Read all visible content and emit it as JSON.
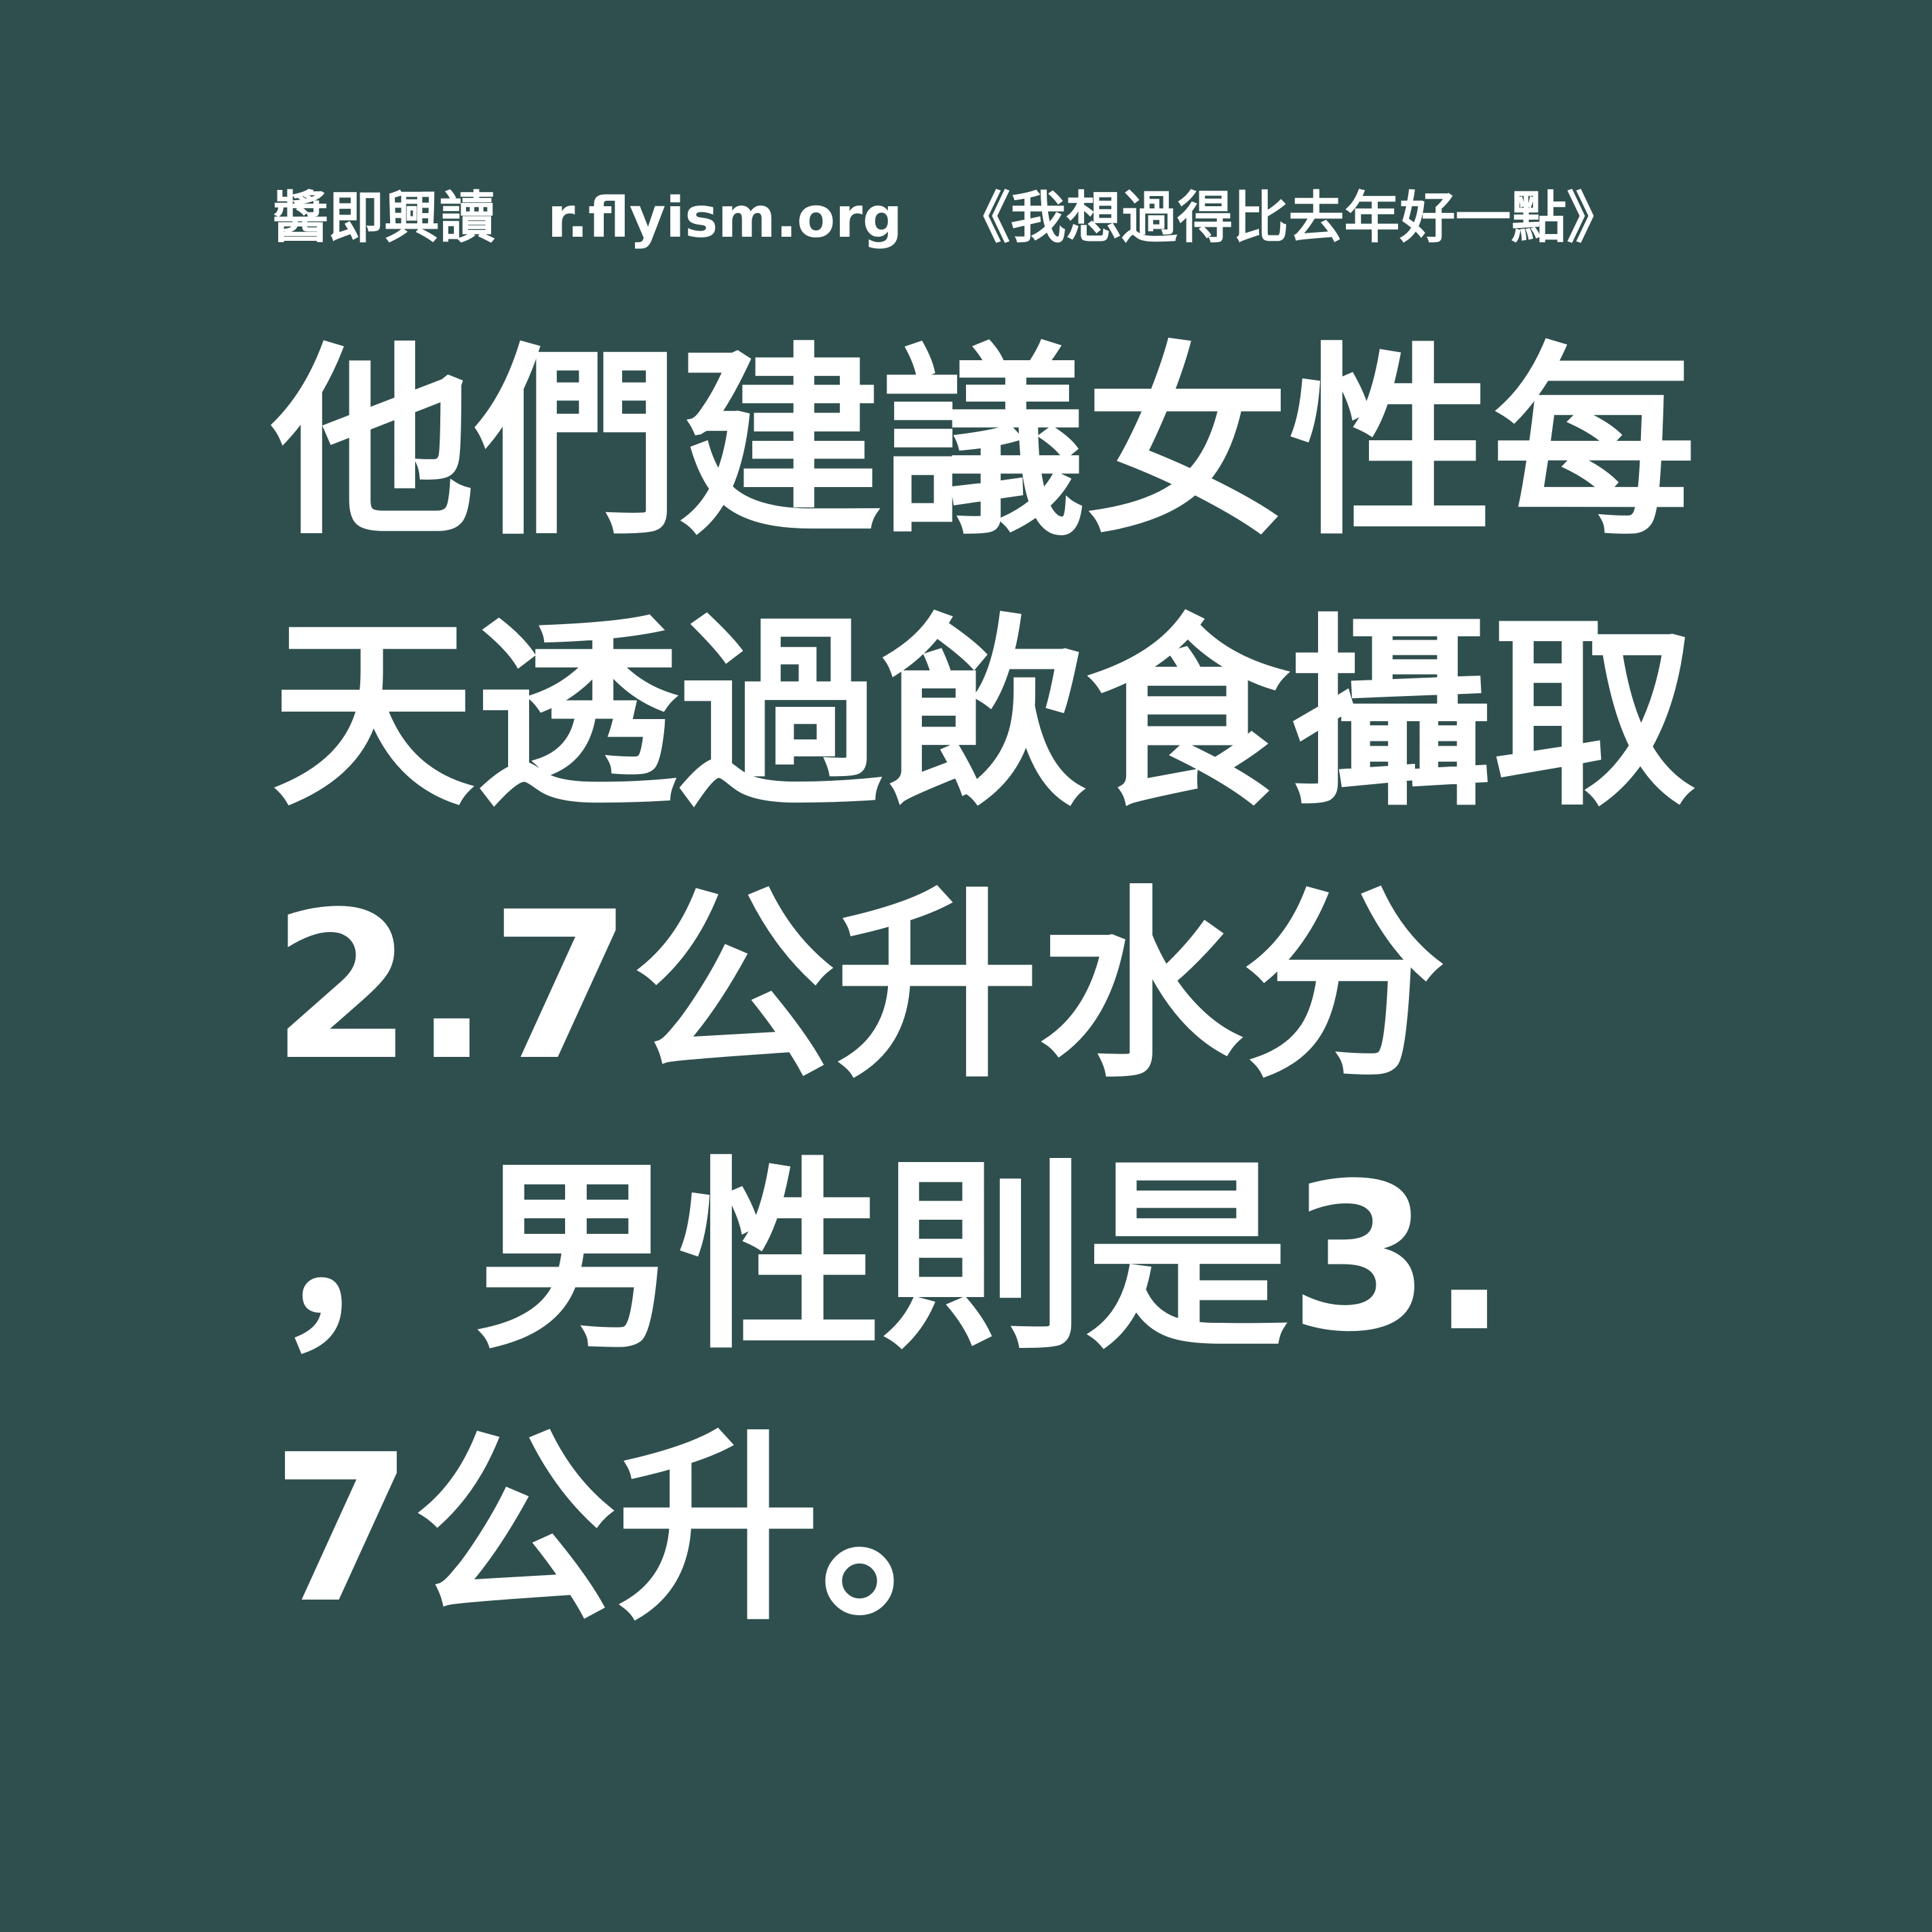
{
  "header": {
    "site": "醬即興讀",
    "url": "r.flyism.org",
    "book": "《我想過得比去年好一點》"
  },
  "quote": {
    "lines": [
      "他們建議女性每",
      "天透過飲食攝取",
      "2.7公升水分",
      "，男性則是3.",
      "7公升。"
    ]
  },
  "colors": {
    "background": "#2f4f4e",
    "text": "#ffffff"
  }
}
